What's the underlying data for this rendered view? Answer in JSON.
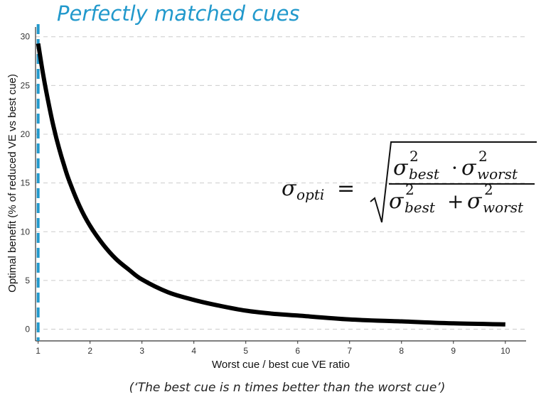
{
  "chart_data": {
    "type": "line",
    "title": "",
    "xlabel": "Worst cue / best cue VE ratio",
    "ylabel": "Optimal benefit (% of reduced VE vs best cue)",
    "xlim": [
      0.95,
      10.4
    ],
    "ylim": [
      -1.2,
      31
    ],
    "x_ticks": [
      1,
      2,
      3,
      4,
      5,
      6,
      7,
      8,
      9,
      10
    ],
    "y_ticks": [
      0,
      5,
      10,
      15,
      20,
      25,
      30
    ],
    "grid": "horizontal dashed",
    "series": [
      {
        "name": "",
        "color": "#000000",
        "x": [
          1,
          1.1,
          1.2,
          1.3,
          1.4,
          1.5,
          1.6,
          1.8,
          2,
          2.25,
          2.5,
          2.75,
          3,
          3.5,
          4,
          4.5,
          5,
          5.5,
          6,
          7,
          8,
          9,
          10
        ],
        "y": [
          29.3,
          26.0,
          23.2,
          20.7,
          18.6,
          16.8,
          15.2,
          12.6,
          10.6,
          8.7,
          7.2,
          6.1,
          5.1,
          3.8,
          3.0,
          2.4,
          1.9,
          1.6,
          1.4,
          1.0,
          0.8,
          0.6,
          0.5
        ]
      }
    ],
    "annotations": {
      "reference_line": {
        "x": 1,
        "label": "Perfectly matched cues",
        "color": "#2299cc"
      },
      "caption": "(‘The best cue is n times better than the worst cue’)"
    }
  },
  "formula": {
    "lhs_symbol": "σ",
    "lhs_sub": "opti",
    "equals": "=",
    "num_a_symbol": "σ",
    "num_a_sup": "2",
    "num_a_sub": "best",
    "dot": "·",
    "num_b_symbol": "σ",
    "num_b_sup": "2",
    "num_b_sub": "worst",
    "den_a_symbol": "σ",
    "den_a_sup": "2",
    "den_a_sub": "best",
    "plus": "+",
    "den_b_symbol": "σ",
    "den_b_sup": "2",
    "den_b_sub": "worst"
  }
}
